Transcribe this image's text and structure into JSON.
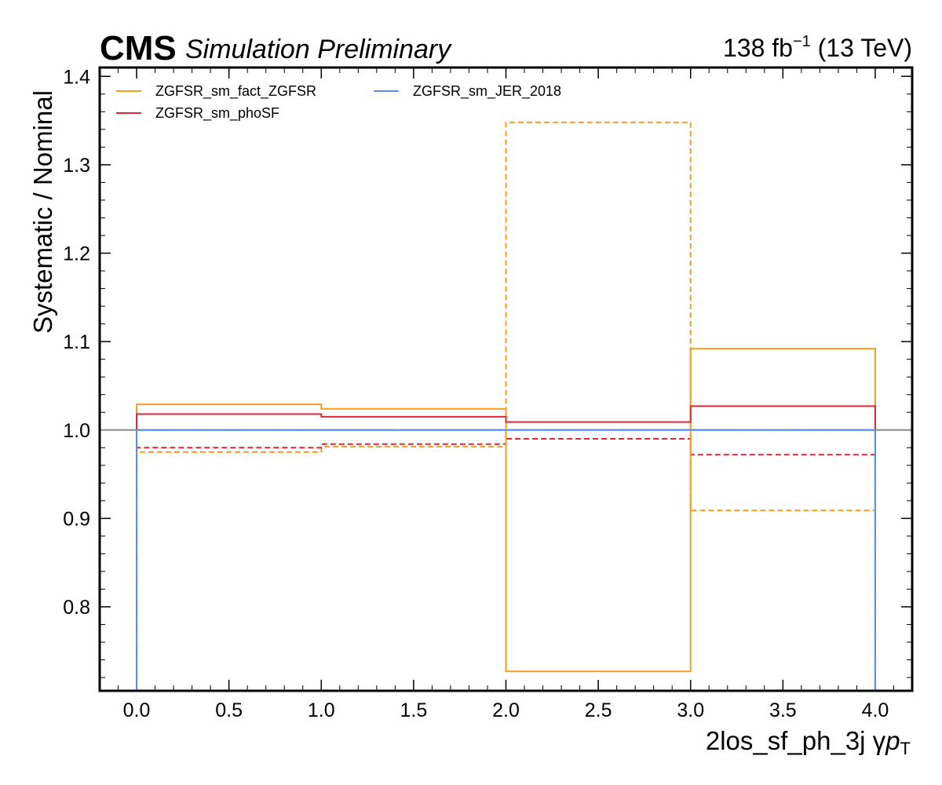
{
  "header": {
    "experiment": "CMS",
    "status": "Simulation Preliminary",
    "lumi_value": "138 fb",
    "lumi_exp": "−1",
    "energy": " (13 TeV)"
  },
  "chart_data": {
    "type": "line",
    "drawstyle": "steps",
    "xlabel_main": "2los_sf_ph_3j   γ",
    "xlabel_var": "p",
    "xlabel_sub": "T",
    "ylabel": "Systematic / Nominal",
    "xlim": [
      -0.2,
      4.2
    ],
    "ylim": [
      0.705,
      1.41
    ],
    "xticks": [
      0.0,
      0.5,
      1.0,
      1.5,
      2.0,
      2.5,
      3.0,
      3.5,
      4.0
    ],
    "xtick_labels": [
      "0.0",
      "0.5",
      "1.0",
      "1.5",
      "2.0",
      "2.5",
      "3.0",
      "3.5",
      "4.0"
    ],
    "yticks": [
      0.8,
      0.9,
      1.0,
      1.1,
      1.2,
      1.3,
      1.4
    ],
    "ytick_labels": [
      "0.8",
      "0.9",
      "1.0",
      "1.1",
      "1.2",
      "1.3",
      "1.4"
    ],
    "bin_edges": [
      0,
      1,
      2,
      3,
      4
    ],
    "reference_line": 1.0,
    "legend_position": "top-left",
    "series": [
      {
        "name": "ZGFSR_sm_fact_ZGFSR",
        "color": "#f89c20",
        "up": [
          1.029,
          1.024,
          0.727,
          1.092
        ],
        "down": [
          0.975,
          0.981,
          1.348,
          0.909
        ]
      },
      {
        "name": "ZGFSR_sm_phoSF",
        "color": "#e42536",
        "up": [
          1.018,
          1.015,
          1.009,
          1.027
        ],
        "down": [
          0.98,
          0.984,
          0.99,
          0.972
        ]
      },
      {
        "name": "ZGFSR_sm_JER_2018",
        "color": "#5790fc",
        "up": [
          1.0,
          1.0,
          1.0,
          1.0
        ],
        "down": [
          1.0,
          1.0,
          1.0,
          1.0
        ]
      }
    ]
  }
}
